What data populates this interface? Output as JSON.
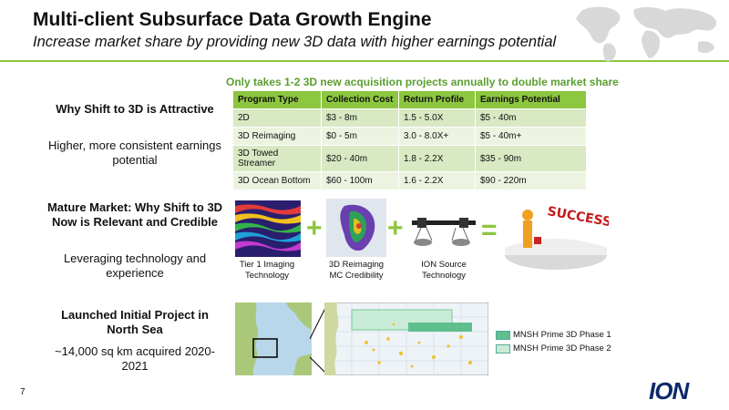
{
  "header": {
    "title": "Multi-client Subsurface Data Growth Engine",
    "subtitle": "Increase market share by providing new 3D data with higher earnings potential"
  },
  "highlight": "Only takes 1-2 3D new acquisition projects annually to double market share",
  "sections": [
    {
      "heading": "Why Shift to 3D is Attractive",
      "body": "Higher, more consistent earnings potential"
    },
    {
      "heading": "Mature Market: Why Shift to 3D Now is Relevant and Credible",
      "body": "Leveraging technology and experience"
    },
    {
      "heading": "Launched Initial Project in North Sea",
      "body": "~14,000 sq km acquired 2020-2021"
    }
  ],
  "table": {
    "headers": [
      "Program Type",
      "Collection Cost",
      "Return Profile",
      "Earnings Potential"
    ],
    "rows": [
      [
        "2D",
        "$3 - 8m",
        "1.5 - 5.0X",
        "$5 - 40m"
      ],
      [
        "3D Reimaging",
        "$0 - 5m",
        "3.0 - 8.0X+",
        "$5 - 40m+"
      ],
      [
        "3D Towed Streamer",
        "$20 - 40m",
        "1.8 - 2.2X",
        "$35 - 90m"
      ],
      [
        "3D Ocean Bottom",
        "$60 - 100m",
        "1.6 - 2.2X",
        "$90 - 220m"
      ]
    ]
  },
  "equation": {
    "items": [
      {
        "caption_l1": "Tier 1 Imaging",
        "caption_l2": "Technology"
      },
      {
        "caption_l1": "3D Reimaging",
        "caption_l2": "MC Credibility"
      },
      {
        "caption_l1": "ION Source",
        "caption_l2": "Technology"
      }
    ],
    "plus": "+",
    "equals": "=",
    "result": "SUCCESS"
  },
  "legend": [
    {
      "label": "MNSH Prime 3D Phase 1",
      "color": "#5fbf8f"
    },
    {
      "label": "MNSH Prime 3D Phase 2",
      "color": "#c9ecd8"
    }
  ],
  "footer": {
    "page_number": "7",
    "logo": "ION"
  }
}
